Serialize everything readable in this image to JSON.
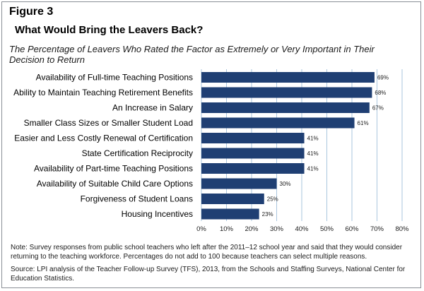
{
  "figure_label": "Figure 3",
  "colors": {
    "bar": "#1f3f73",
    "grid": "#aac6de",
    "text": "#1a1a1a"
  },
  "chart_data": {
    "type": "bar",
    "orientation": "horizontal",
    "title": "What Would Bring the Leavers Back?",
    "subtitle": "The Percentage of Leavers Who Rated the Factor as Extremely or Very Important in Their Decision to Return",
    "categories": [
      "Availability of Full-time Teaching Positions",
      "Ability to Maintain Teaching Retirement Benefits",
      "An Increase in Salary",
      "Smaller Class Sizes or Smaller Student Load",
      "Easier and Less Costly Renewal of Certification",
      "State Certification Reciprocity",
      "Availability of Part-time Teaching Positions",
      "Availability of Suitable Child Care Options",
      "Forgiveness of Student Loans",
      "Housing Incentives"
    ],
    "values": [
      69,
      68,
      67,
      61,
      41,
      41,
      41,
      30,
      25,
      23
    ],
    "value_labels": [
      "69%",
      "68%",
      "67%",
      "61%",
      "41%",
      "41%",
      "41%",
      "30%",
      "25%",
      "23%"
    ],
    "xlim": [
      0,
      80
    ],
    "xticks": [
      "0%",
      "10%",
      "20%",
      "30%",
      "40%",
      "50%",
      "60%",
      "70%",
      "80%"
    ],
    "grid": true
  },
  "note": "Note: Survey responses from public school teachers who left after the 2011–12 school year and said that they would consider returning to the teaching workforce. Percentages do not add to 100 because teachers can select multiple reasons.",
  "source": "Source: LPI analysis of the Teacher Follow-up Survey (TFS), 2013, from the Schools and Staffing Surveys, National Center for Education Statistics."
}
